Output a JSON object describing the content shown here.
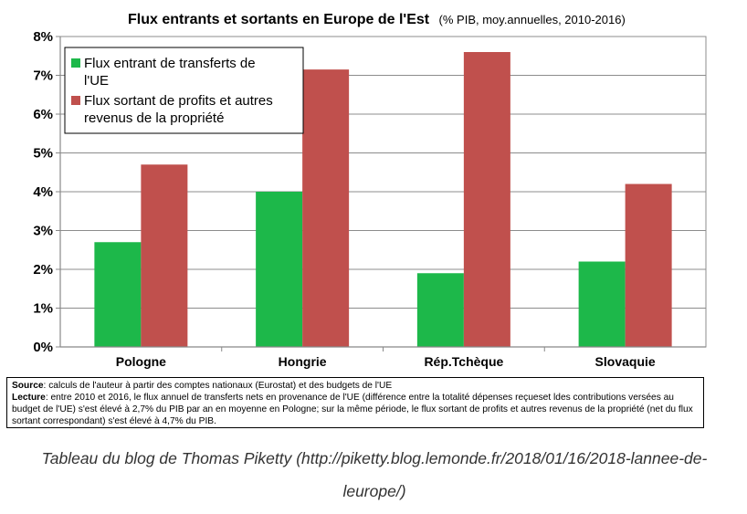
{
  "chart_data": {
    "type": "bar",
    "title": "Flux entrants et sortants en Europe de l'Est",
    "subtitle": "(% PIB, moy.annuelles, 2010-2016)",
    "categories": [
      "Pologne",
      "Hongrie",
      "Rép.Tchèque",
      "Slovaquie"
    ],
    "series": [
      {
        "name": "Flux entrant de transferts de l'UE",
        "color": "#1db84a",
        "values": [
          2.7,
          4.0,
          1.9,
          2.2
        ]
      },
      {
        "name": "Flux sortant de profits et autres revenus de la propriété",
        "color": "#c0504d",
        "values": [
          4.7,
          7.15,
          7.6,
          4.2
        ]
      }
    ],
    "ylim": [
      0,
      8
    ],
    "yticks": [
      "0%",
      "1%",
      "2%",
      "3%",
      "4%",
      "5%",
      "6%",
      "7%",
      "8%"
    ],
    "grid": true,
    "legend": "top-left"
  },
  "legend_lines": [
    [
      "Flux entrant de transferts de",
      "l'UE"
    ],
    [
      "Flux sortant de profits et autres",
      "revenus de la propriété"
    ]
  ],
  "note": {
    "source_label": "Source",
    "source_text": ": calculs de l'auteur à partir des comptes nationaux (Eurostat) et des budgets de l'UE",
    "lecture_label": "Lecture",
    "lecture_text": ": entre 2010 et 2016, le flux annuel de transferts nets en provenance de l'UE (différence entre la totalité dépenses reçueset ldes contributions versées au budget de l'UE) s'est élevé à 2,7% du PIB par an en moyenne en Pologne; sur la même période, le flux sortant de profits et autres revenus de la propriété (net du flux sortant correspondant) s'est élevé à 4,7% du PIB."
  },
  "caption": "Tableau du blog de Thomas Piketty (http://piketty.blog.lemonde.fr/2018/01/16/2018-lannee-de-leurope/)"
}
